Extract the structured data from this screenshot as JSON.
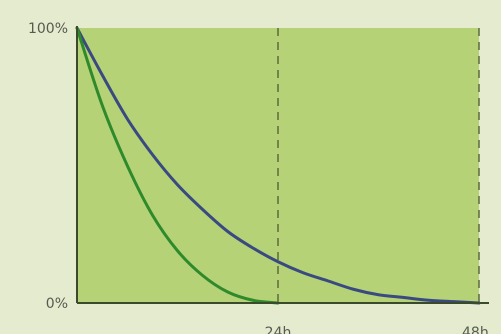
{
  "chart_data": {
    "type": "line",
    "x_unit": "h",
    "y_unit": "%",
    "xlim": [
      0,
      48
    ],
    "ylim": [
      0,
      100
    ],
    "x_ticks": [
      {
        "value": 24,
        "label": "24h"
      },
      {
        "value": 48,
        "label": "48h"
      }
    ],
    "y_ticks": [
      {
        "value": 100,
        "label": "100%"
      },
      {
        "value": 0,
        "label": "0%"
      }
    ],
    "reference_lines_x": [
      24,
      48
    ],
    "series": [
      {
        "color": "#3a4a80",
        "x": [
          0,
          3,
          6,
          9,
          12,
          15,
          18,
          21,
          24,
          27,
          30,
          33,
          36,
          39,
          42,
          45,
          48
        ],
        "y": [
          100,
          83,
          67,
          54,
          43,
          34,
          26,
          20,
          15,
          11,
          8,
          5,
          3,
          2,
          1,
          0.5,
          0
        ]
      },
      {
        "color": "#2f8a2c",
        "x": [
          0,
          3,
          6,
          9,
          12,
          15,
          18,
          21,
          24
        ],
        "y": [
          100,
          72,
          50,
          32,
          19,
          10,
          4,
          1,
          0
        ]
      }
    ],
    "plot_background": "#b5d276",
    "page_background": "#e5ebce",
    "axis_color": "#3b4a2a",
    "grid": false
  }
}
